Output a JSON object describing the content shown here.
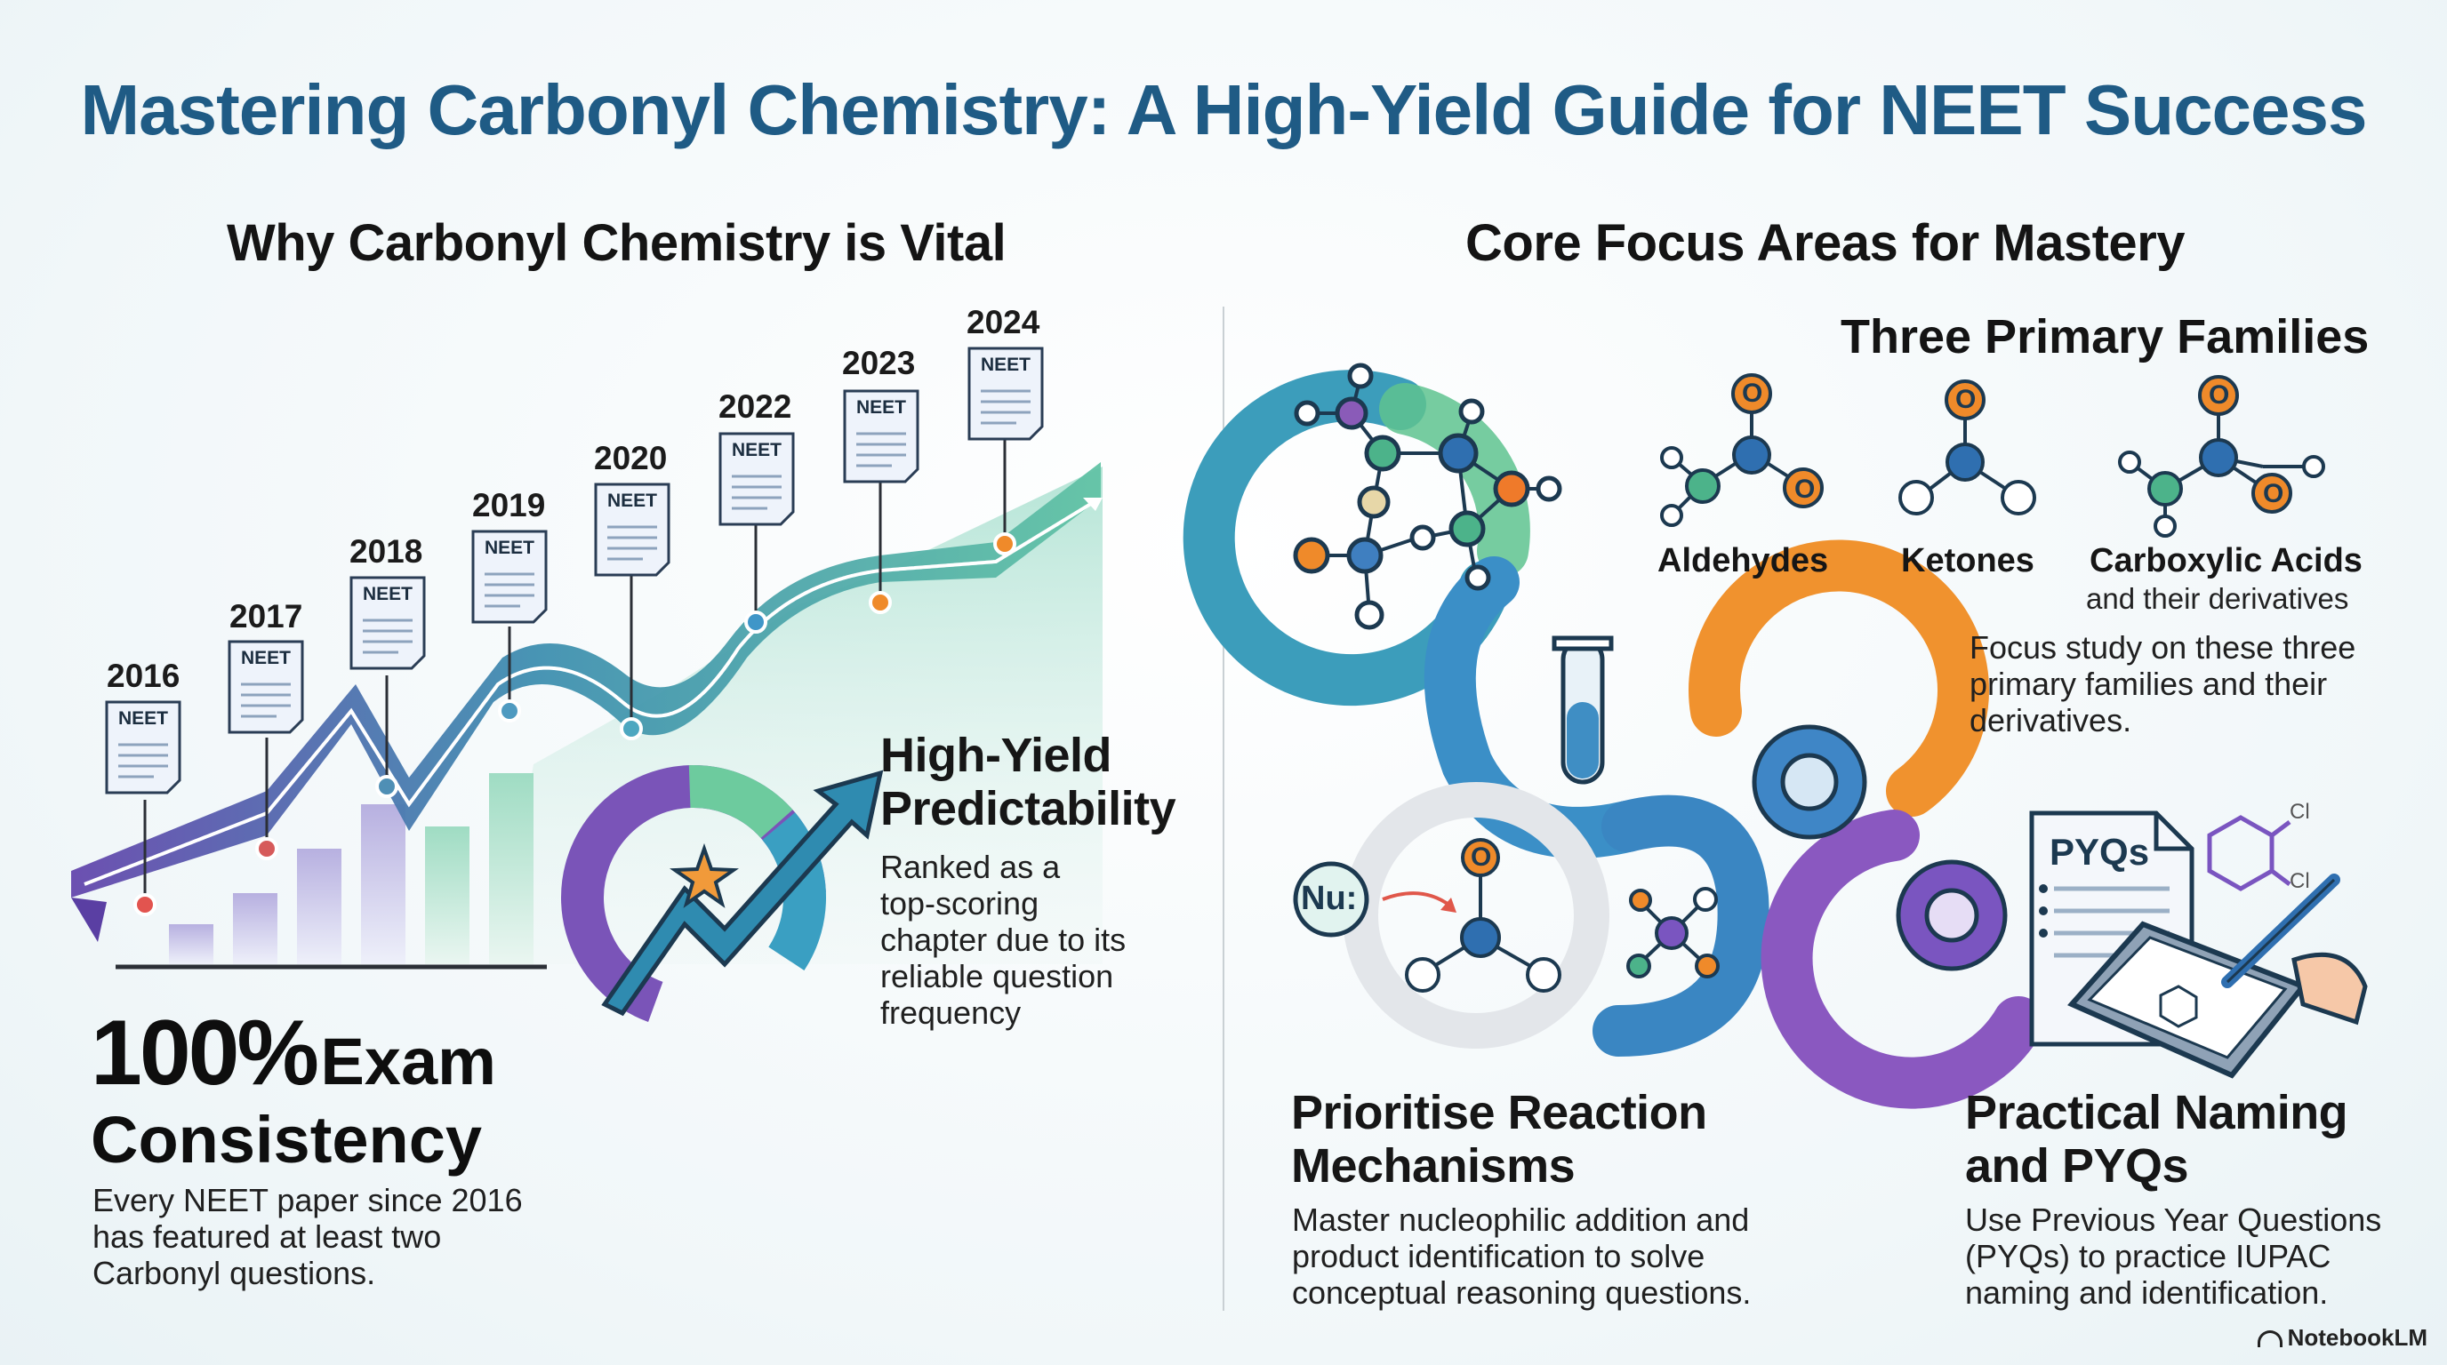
{
  "title": "Mastering Carbonyl Chemistry: A High-Yield Guide for NEET Success",
  "left": {
    "heading": "Why Carbonyl Chemistry is Vital",
    "timeline": {
      "years": [
        "2016",
        "2017",
        "2018",
        "2019",
        "2020",
        "2022",
        "2023",
        "2024"
      ],
      "doc_label": "NEET"
    },
    "predictability": {
      "heading_line1": "High-Yield",
      "heading_line2": "Predictability",
      "body_lines": [
        "Ranked as a",
        "top-scoring",
        "chapter due to its",
        "reliable question",
        "frequency"
      ]
    },
    "consistency": {
      "stat": "100%",
      "stat_suffix": "Exam",
      "stat_line2": "Consistency",
      "body_lines": [
        "Every NEET paper since 2016",
        "has featured at least two",
        "Carbonyl questions."
      ]
    }
  },
  "right": {
    "heading": "Core Focus Areas for Mastery",
    "families": {
      "heading": "Three Primary Families",
      "items": [
        {
          "label": "Aldehydes"
        },
        {
          "label": "Ketones"
        },
        {
          "label": "Carboxylic Acids",
          "sub": "and their derivatives"
        }
      ],
      "body_lines": [
        "Focus study on these three",
        "primary families and their",
        "derivatives."
      ],
      "atom_o": "O"
    },
    "mechanisms": {
      "heading_line1": "Prioritise Reaction",
      "heading_line2": "Mechanisms",
      "body_lines": [
        "Master nucleophilic addition and",
        "product identification to solve",
        "conceptual reasoning questions."
      ],
      "nu_label": "Nu:"
    },
    "naming": {
      "heading_line1": "Practical Naming",
      "heading_line2": "and PYQs",
      "body_lines": [
        "Use Previous Year Questions",
        "(PYQs) to practice IUPAC",
        "naming and identification."
      ],
      "pyq_label": "PYQs",
      "cl_label": "Cl"
    }
  },
  "brand": "NotebookLM",
  "colors": {
    "title": "#1f5b85",
    "purple": "#6a4fb0",
    "teal": "#3d8f9c",
    "green": "#4cb38a",
    "orange": "#ef8a2a",
    "blue": "#2f7fbf"
  }
}
